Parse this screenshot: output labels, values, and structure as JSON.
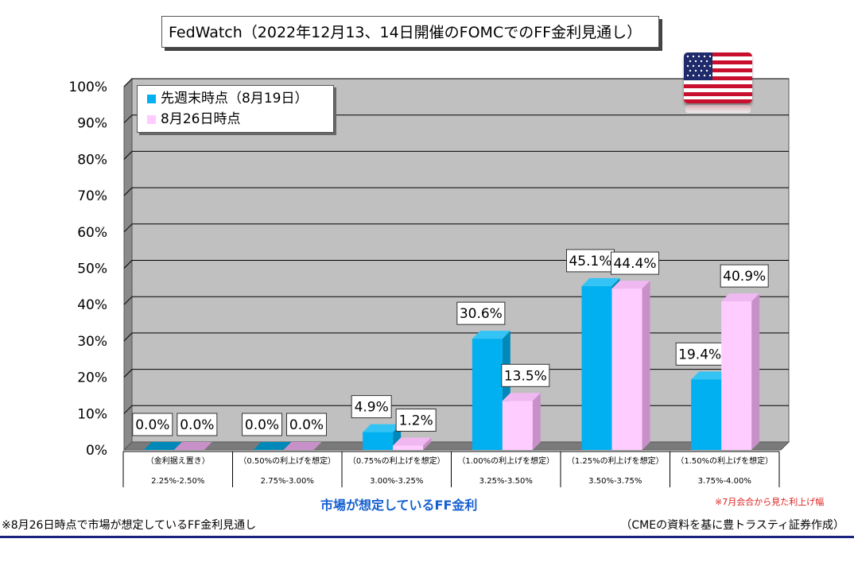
{
  "title": "FedWatch（2022年12月13、14日開催のFOMCでのFF金利見通し）",
  "flag": "us-flag-icon",
  "colors": {
    "series1": "#00b0f0",
    "series2": "#ffccff",
    "plot_bg": "#c0c0c0"
  },
  "chart_data": {
    "type": "bar",
    "categories": [
      {
        "label": "（金利据え置き）",
        "range": "2.25%-2.50%"
      },
      {
        "label": "（0.50%の利上げを想定）",
        "range": "2.75%-3.00%"
      },
      {
        "label": "（0.75%の利上げを想定）",
        "range": "3.00%-3.25%"
      },
      {
        "label": "（1.00%の利上げを想定）",
        "range": "3.25%-3.50%"
      },
      {
        "label": "（1.25%の利上げを想定）",
        "range": "3.50%-3.75%"
      },
      {
        "label": "（1.50%の利上げを想定）",
        "range": "3.75%-4.00%"
      }
    ],
    "series": [
      {
        "name": "先週末時点（8月19日）",
        "values": [
          0.0,
          0.0,
          4.9,
          30.6,
          45.1,
          19.4
        ],
        "labels": [
          "0.0%",
          "0.0%",
          "4.9%",
          "30.6%",
          "45.1%",
          "19.4%"
        ]
      },
      {
        "name": "8月26日時点",
        "values": [
          0.0,
          0.0,
          1.2,
          13.5,
          44.4,
          40.9
        ],
        "labels": [
          "0.0%",
          "0.0%",
          "1.2%",
          "13.5%",
          "44.4%",
          "40.9%"
        ]
      }
    ],
    "yticks": [
      "0%",
      "10%",
      "20%",
      "30%",
      "40%",
      "50%",
      "60%",
      "70%",
      "80%",
      "90%",
      "100%"
    ],
    "ylim": [
      0,
      100
    ],
    "xlabel": "市場が想定しているFF金利",
    "grid": true,
    "legend": "top-left"
  },
  "notes": {
    "red": "※7月会合から見た利上げ幅",
    "left": "※8月26日時点で市場が想定しているFF金利見通し",
    "right": "（CMEの資料を基に豊トラスティ証券作成）"
  }
}
